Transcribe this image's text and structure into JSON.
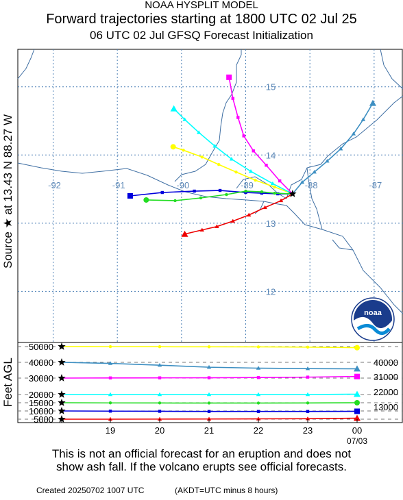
{
  "header": {
    "line1": "NOAA HYSPLIT MODEL",
    "line2": "Forward trajectories starting at 1800 UTC 02 Jul 25",
    "line3": "06 UTC 02 Jul    GFSQ  Forecast Initialization"
  },
  "side_labels": {
    "source": "Source ★ at    13.43 N    88.27 W",
    "height": "Feet AGL"
  },
  "footer": {
    "disclaimer_line1": "This is not an official forecast for an eruption and does not",
    "disclaimer_line2": "show ash fall. If the volcano erupts see official forecasts.",
    "created": "Created 20250702 1007 UTC",
    "akdt": "(AKDT=UTC minus 8 hours)"
  },
  "logo": {
    "text": "noaa"
  },
  "colors": {
    "grid": "#4a7fb5",
    "axis_label": "#5b87b6",
    "coastline": "#3f6fa3",
    "yellow": "#ffff00",
    "cyan": "#00ffff",
    "magenta": "#ff00ff",
    "steelblue": "#3d8fc2",
    "blue": "#0000dd",
    "green": "#22dd22",
    "red": "#ee0000"
  },
  "chart_data": [
    {
      "type": "line",
      "panel": "map",
      "x_ticks": [
        -92,
        -91,
        -90,
        -89,
        -88,
        -87
      ],
      "y_ticks": [
        12,
        13,
        14,
        15
      ],
      "x_tick_labels": [
        "-92",
        "-91",
        "-90",
        "-89",
        "-88",
        "-87"
      ],
      "y_tick_labels": [
        "12",
        "13",
        "14",
        "15"
      ],
      "xlim": [
        -92.55,
        -86.55
      ],
      "ylim": [
        11.25,
        15.55
      ],
      "source": {
        "lat": 13.43,
        "lon": -88.27
      },
      "series": [
        {
          "color": "yellow",
          "marker": "circle",
          "points": [
            [
              -88.27,
              13.43
            ],
            [
              -88.55,
              13.53
            ],
            [
              -88.85,
              13.63
            ],
            [
              -89.15,
              13.75
            ],
            [
              -89.42,
              13.86
            ],
            [
              -89.68,
              13.97
            ],
            [
              -89.97,
              14.07
            ],
            [
              -90.13,
              14.12
            ]
          ]
        },
        {
          "color": "cyan",
          "marker": "triangle",
          "points": [
            [
              -88.27,
              13.43
            ],
            [
              -88.58,
              13.58
            ],
            [
              -88.92,
              13.76
            ],
            [
              -89.22,
              13.94
            ],
            [
              -89.48,
              14.13
            ],
            [
              -89.73,
              14.33
            ],
            [
              -89.95,
              14.52
            ],
            [
              -90.12,
              14.68
            ]
          ]
        },
        {
          "color": "magenta",
          "marker": "square",
          "points": [
            [
              -88.27,
              13.43
            ],
            [
              -88.47,
              13.62
            ],
            [
              -88.68,
              13.85
            ],
            [
              -88.88,
              14.06
            ],
            [
              -89.03,
              14.28
            ],
            [
              -89.12,
              14.55
            ],
            [
              -89.2,
              14.83
            ],
            [
              -89.26,
              15.14
            ]
          ]
        },
        {
          "color": "steelblue",
          "marker": "triangle",
          "points": [
            [
              -88.27,
              13.43
            ],
            [
              -88.12,
              13.6
            ],
            [
              -87.93,
              13.75
            ],
            [
              -87.73,
              13.91
            ],
            [
              -87.52,
              14.09
            ],
            [
              -87.32,
              14.31
            ],
            [
              -87.17,
              14.52
            ],
            [
              -87.02,
              14.76
            ]
          ]
        },
        {
          "color": "blue",
          "marker": "square",
          "points": [
            [
              -88.27,
              13.43
            ],
            [
              -88.5,
              13.43
            ],
            [
              -88.75,
              13.44
            ],
            [
              -89.0,
              13.45
            ],
            [
              -89.4,
              13.48
            ],
            [
              -89.8,
              13.47
            ],
            [
              -90.3,
              13.45
            ],
            [
              -90.8,
              13.4
            ]
          ]
        },
        {
          "color": "green",
          "marker": "circle",
          "points": [
            [
              -88.27,
              13.43
            ],
            [
              -88.55,
              13.44
            ],
            [
              -88.75,
              13.46
            ],
            [
              -89.0,
              13.47
            ],
            [
              -89.3,
              13.42
            ],
            [
              -89.7,
              13.37
            ],
            [
              -90.1,
              13.33
            ],
            [
              -90.55,
              13.34
            ]
          ]
        },
        {
          "color": "red",
          "marker": "triangle",
          "points": [
            [
              -88.27,
              13.43
            ],
            [
              -88.45,
              13.33
            ],
            [
              -88.7,
              13.23
            ],
            [
              -88.95,
              13.12
            ],
            [
              -89.2,
              13.03
            ],
            [
              -89.45,
              12.95
            ],
            [
              -89.68,
              12.9
            ],
            [
              -89.95,
              12.84
            ]
          ]
        }
      ]
    },
    {
      "type": "line",
      "panel": "height",
      "x_ticks": [
        "18",
        "19",
        "20",
        "21",
        "22",
        "23",
        "00"
      ],
      "x_tick_labels": [
        "",
        "19",
        "20",
        "21",
        "22",
        "23",
        "00"
      ],
      "x_sublabel": "07/03",
      "y_tick_labels_left": [
        "50000",
        "40000",
        "30000",
        "20000",
        "15000",
        "10000",
        "5000"
      ],
      "y_tick_labels_right": [
        "40000",
        "31000",
        "22000",
        "13000"
      ],
      "y_tick_values": [
        50000,
        40000,
        30000,
        20000,
        15000,
        10000,
        5000
      ],
      "series": [
        {
          "color": "yellow",
          "marker": "circle",
          "values": [
            50000,
            49950,
            49900,
            49850,
            49800,
            49650,
            49300
          ]
        },
        {
          "color": "steelblue",
          "marker": "triangle",
          "values": [
            40000,
            39300,
            38200,
            36900,
            36300,
            36000,
            35900
          ]
        },
        {
          "color": "magenta",
          "marker": "square",
          "values": [
            30000,
            30100,
            30150,
            30200,
            30350,
            30600,
            31000
          ]
        },
        {
          "color": "cyan",
          "marker": "triangle",
          "values": [
            20000,
            20000,
            20000,
            20000,
            20000,
            20000,
            20200
          ]
        },
        {
          "color": "green",
          "marker": "circle",
          "values": [
            15000,
            14900,
            14850,
            14800,
            14800,
            14850,
            15000
          ]
        },
        {
          "color": "blue",
          "marker": "square",
          "values": [
            10000,
            9900,
            9800,
            9700,
            9700,
            9700,
            9800
          ]
        },
        {
          "color": "red",
          "marker": "triangle",
          "values": [
            5000,
            5000,
            5050,
            5100,
            5200,
            5300,
            5600
          ]
        }
      ]
    }
  ]
}
